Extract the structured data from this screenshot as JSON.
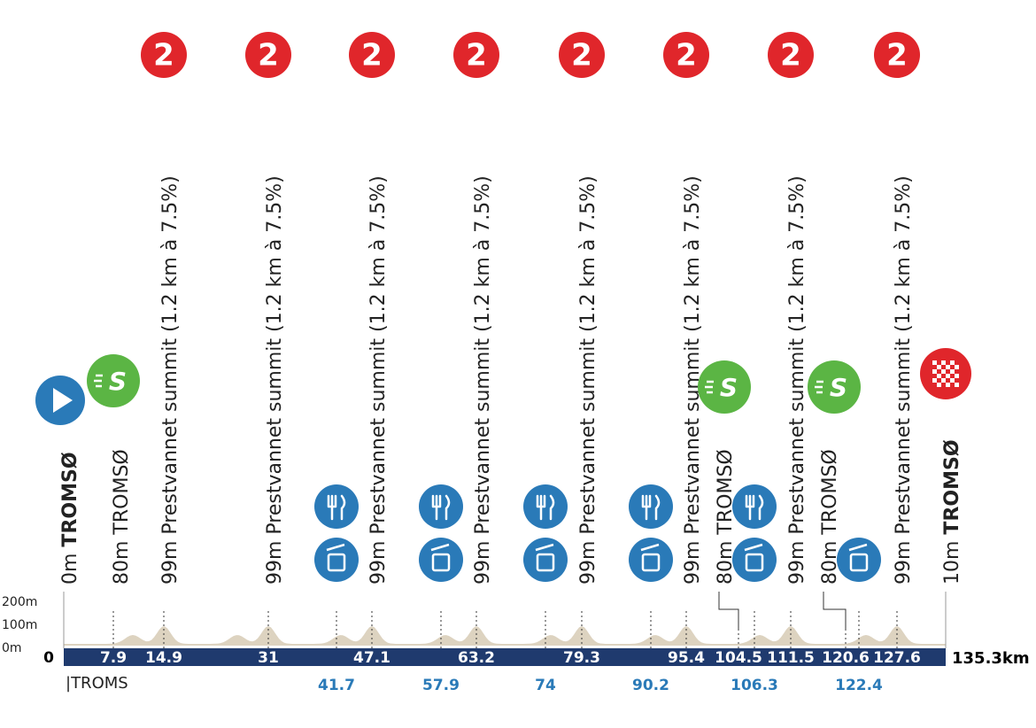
{
  "start": {
    "elevation": "0m",
    "name": "TROMSØ"
  },
  "waypoints": [
    "80m TROMSØ",
    "99m Prestvannet summit (1.2 km à 7.5%)",
    "99m Prestvannet summit (1.2 km à 7.5%)",
    "99m Prestvannet summit (1.2 km à 7.5%)",
    "99m Prestvannet summit (1.2 km à 7.5%)",
    "99m Prestvannet summit (1.2 km à 7.5%)",
    "99m Prestvannet summit (1.2 km à 7.5%)",
    "80m TROMSØ",
    "99m Prestvannet summit (1.2 km à 7.5%)",
    "80m TROMSØ",
    "99m Prestvannet summit (1.2 km à 7.5%)"
  ],
  "finish": {
    "elevation": "10m",
    "name": "TROMSØ"
  },
  "climb_category": "2",
  "sprint_symbol": "S",
  "elevation_axis": [
    "200m",
    "100m",
    "0m"
  ],
  "km_start": 0,
  "km_marks": [
    7.9,
    14.9,
    31,
    47.1,
    63.2,
    79.3,
    95.4,
    104.5,
    111.5,
    120.6,
    127.6
  ],
  "km_total": "135.3km",
  "zone_marks": [
    41.7,
    57.9,
    74,
    90.2,
    106.3,
    122.4
  ],
  "start_town": "|TROMS"
}
